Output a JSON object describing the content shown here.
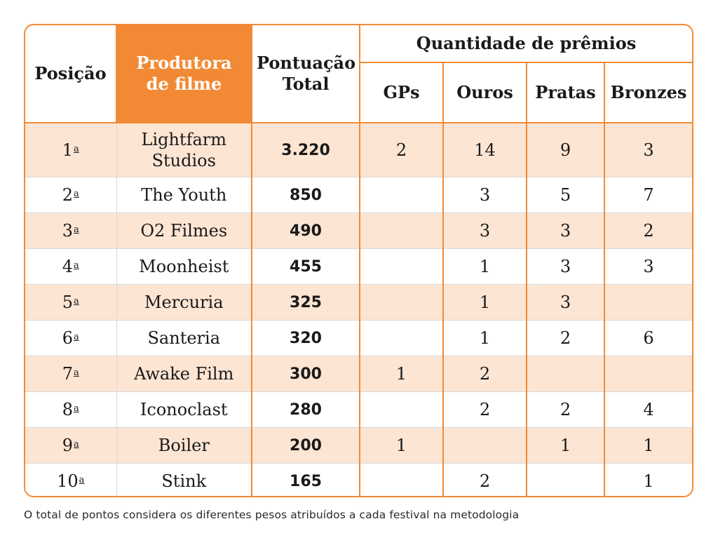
{
  "headers": {
    "position": "Posição",
    "producer": "Produtora de filme",
    "total": "Pontuação Total",
    "awards_group": "Quantidade de prêmios",
    "gps": "GPs",
    "golds": "Ouros",
    "silvers": "Pratas",
    "bronzes": "Bronzes"
  },
  "rows": [
    {
      "pos": "1",
      "ord": "a",
      "producer": "Lightfarm Studios",
      "total": "3.220",
      "gps": "2",
      "golds": "14",
      "silvers": "9",
      "bronzes": "3"
    },
    {
      "pos": "2",
      "ord": "a",
      "producer": "The Youth",
      "total": "850",
      "gps": "",
      "golds": "3",
      "silvers": "5",
      "bronzes": "7"
    },
    {
      "pos": "3",
      "ord": "a",
      "producer": "O2 Filmes",
      "total": "490",
      "gps": "",
      "golds": "3",
      "silvers": "3",
      "bronzes": "2"
    },
    {
      "pos": "4",
      "ord": "a",
      "producer": "Moonheist",
      "total": "455",
      "gps": "",
      "golds": "1",
      "silvers": "3",
      "bronzes": "3"
    },
    {
      "pos": "5",
      "ord": "a",
      "producer": "Mercuria",
      "total": "325",
      "gps": "",
      "golds": "1",
      "silvers": "3",
      "bronzes": ""
    },
    {
      "pos": "6",
      "ord": "a",
      "producer": "Santeria",
      "total": "320",
      "gps": "",
      "golds": "1",
      "silvers": "2",
      "bronzes": "6"
    },
    {
      "pos": "7",
      "ord": "a",
      "producer": "Awake Film",
      "total": "300",
      "gps": "1",
      "golds": "2",
      "silvers": "",
      "bronzes": ""
    },
    {
      "pos": "8",
      "ord": "a",
      "producer": "Iconoclast",
      "total": "280",
      "gps": "",
      "golds": "2",
      "silvers": "2",
      "bronzes": "4"
    },
    {
      "pos": "9",
      "ord": "a",
      "producer": "Boiler",
      "total": "200",
      "gps": "1",
      "golds": "",
      "silvers": "1",
      "bronzes": "1"
    },
    {
      "pos": "10",
      "ord": "a",
      "producer": "Stink",
      "total": "165",
      "gps": "",
      "golds": "2",
      "silvers": "",
      "bronzes": "1"
    }
  ],
  "footnote": "O total de pontos considera os diferentes pesos atribuídos a cada festival na metodologia",
  "colors": {
    "accent": "#f28a35",
    "row_tint": "#fde5d3"
  }
}
